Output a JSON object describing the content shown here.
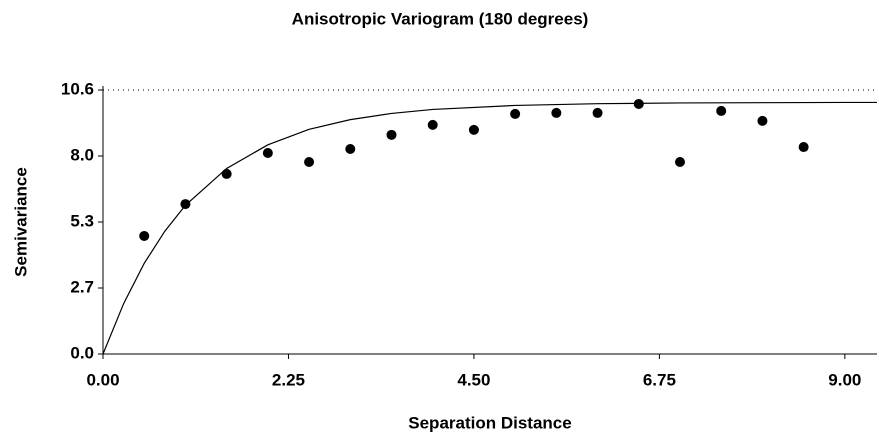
{
  "chart_data": {
    "type": "scatter",
    "title": "Anisotropic Variogram (180 degrees)",
    "xlabel": "Separation Distance",
    "ylabel": "Semivariance",
    "xlim": [
      0,
      9.39
    ],
    "ylim": [
      0,
      10.6
    ],
    "xticks": [
      {
        "value": 0,
        "label": "0.00"
      },
      2.25,
      {
        "value": 4.5,
        "label": "4.50"
      },
      6.75,
      {
        "value": 9,
        "label": "9.00"
      }
    ],
    "yticks": [
      {
        "value": 0,
        "label": "0.0"
      },
      {
        "value": 2.65,
        "label": "2.7"
      },
      5.3,
      {
        "value": 7.95,
        "label": "8.0"
      },
      10.6
    ],
    "reference_line": 10.6,
    "series": [
      {
        "type": "scatter",
        "color": "#000000",
        "x": [
          0.5,
          1,
          1.5,
          2,
          2.5,
          3,
          3.5,
          4,
          4.5,
          5,
          5.5,
          6,
          6.5,
          7,
          7.5,
          8,
          8.5
        ],
        "values": [
          4.74,
          6.02,
          7.23,
          8.07,
          7.71,
          8.23,
          8.8,
          9.2,
          9.0,
          9.64,
          9.68,
          9.68,
          10.04,
          7.71,
          9.76,
          9.36,
          8.31
        ]
      },
      {
        "type": "line",
        "color": "#000000",
        "x": [
          0,
          0.25,
          0.5,
          0.75,
          1,
          1.5,
          2,
          2.5,
          3,
          3.5,
          4,
          5,
          6,
          7,
          8,
          9,
          9.39
        ],
        "values": [
          0,
          2.02,
          3.64,
          4.93,
          5.97,
          7.45,
          8.4,
          9.02,
          9.41,
          9.66,
          9.82,
          9.98,
          10.05,
          10.08,
          10.09,
          10.1,
          10.1
        ]
      }
    ]
  }
}
